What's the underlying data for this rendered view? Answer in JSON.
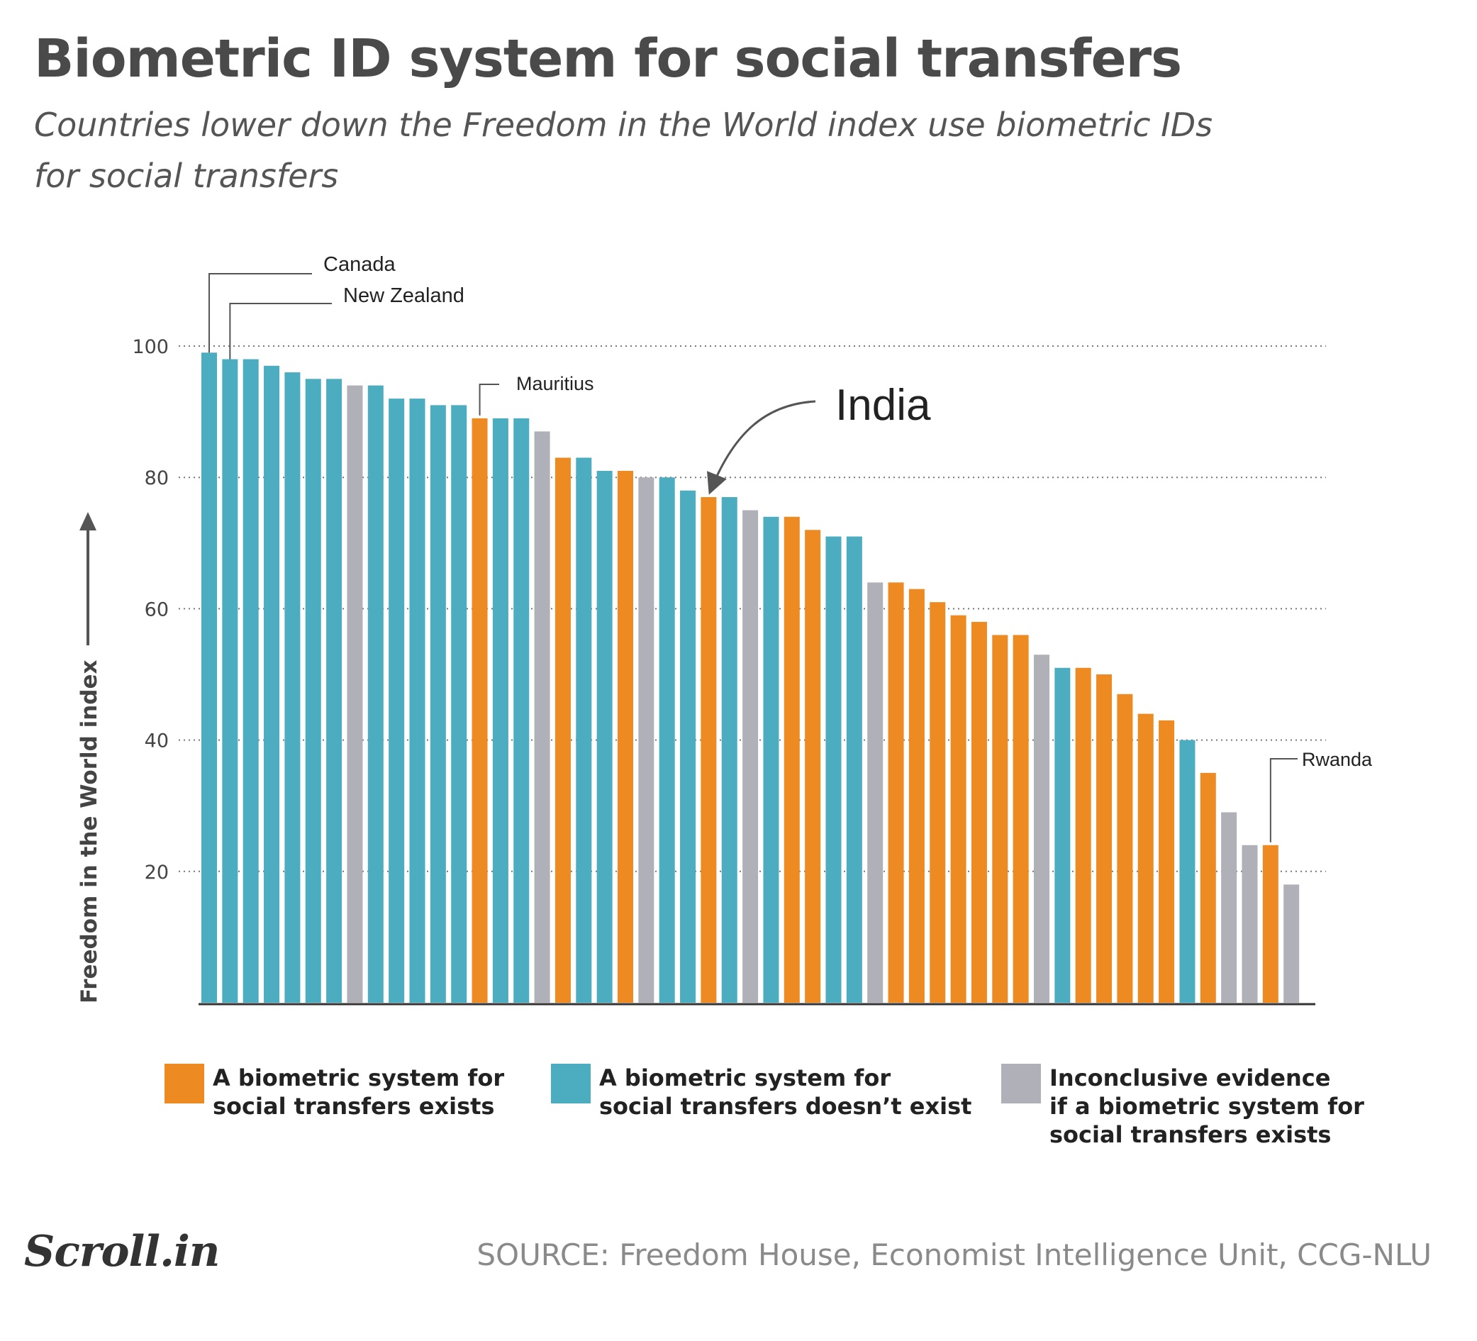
{
  "title": "Biometric ID system for social transfers",
  "subtitle_line1": "Countries lower down the Freedom in the World index use biometric IDs",
  "subtitle_line2": "for social transfers",
  "legend": [
    {
      "key": "exists",
      "label": "A biometric system for\nsocial transfers exists",
      "color": "#ee8a22"
    },
    {
      "key": "not_exists",
      "label": "A biometric system for\nsocial transfers doesn’t exist",
      "color": "#4badbf"
    },
    {
      "key": "inconclusive",
      "label": "Inconclusive evidence\nif a biometric system for\nsocial transfers exists",
      "color": "#b0b0b8"
    }
  ],
  "source": "SOURCE: Freedom House, Economist Intelligence Unit, CCG-NLU",
  "brand": "Scroll.in",
  "chart_data": {
    "type": "bar",
    "ylabel": "Freedom in the World index",
    "ylim": [
      0,
      100
    ],
    "yticks": [
      20,
      40,
      60,
      80,
      100
    ],
    "grid": true,
    "values": [
      99,
      98,
      98,
      97,
      96,
      95,
      95,
      94,
      94,
      92,
      92,
      91,
      91,
      89,
      89,
      89,
      87,
      83,
      83,
      81,
      81,
      80,
      80,
      78,
      77,
      77,
      75,
      74,
      74,
      72,
      71,
      71,
      64,
      64,
      63,
      61,
      59,
      58,
      56,
      56,
      53,
      51,
      51,
      50,
      47,
      44,
      43,
      40,
      35,
      29,
      24,
      24,
      18
    ],
    "status": [
      "no",
      "no",
      "no",
      "no",
      "no",
      "no",
      "no",
      "inc",
      "no",
      "no",
      "no",
      "no",
      "no",
      "yes",
      "no",
      "no",
      "inc",
      "yes",
      "no",
      "no",
      "yes",
      "inc",
      "no",
      "no",
      "yes",
      "no",
      "inc",
      "no",
      "yes",
      "yes",
      "no",
      "no",
      "inc",
      "yes",
      "yes",
      "yes",
      "yes",
      "yes",
      "yes",
      "yes",
      "inc",
      "no",
      "yes",
      "yes",
      "yes",
      "yes",
      "yes",
      "no",
      "yes",
      "inc",
      "inc",
      "yes",
      "inc"
    ],
    "annotations": [
      {
        "label": "Canada",
        "index": 0
      },
      {
        "label": "New Zealand",
        "index": 1
      },
      {
        "label": "Mauritius",
        "index": 13
      },
      {
        "label": "India",
        "index": 24
      },
      {
        "label": "Rwanda",
        "index": 51
      }
    ]
  }
}
